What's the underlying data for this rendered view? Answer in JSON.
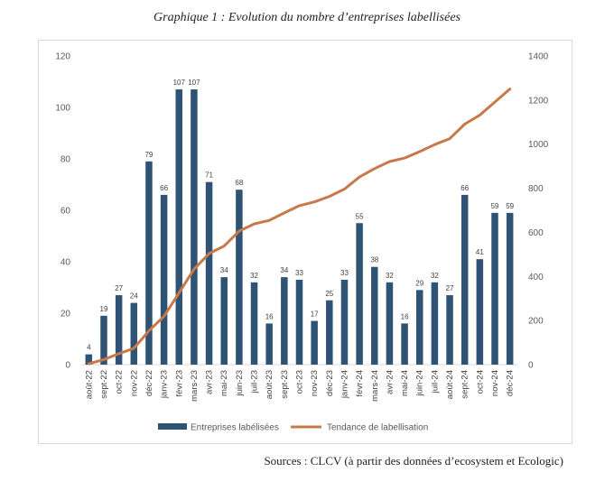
{
  "title": "Graphique 1 : Evolution du nombre d’entreprises labellisées",
  "source": "Sources : CLCV (à partir des données d’ecosystem et Ecologic)",
  "chart_data": {
    "type": "bar",
    "categories": [
      "août-22",
      "sept-22",
      "oct-22",
      "nov-22",
      "déc-22",
      "janv-23",
      "févr-23",
      "mars-23",
      "avr-23",
      "mai-23",
      "juin-23",
      "juil-23",
      "août-23",
      "sept-23",
      "oct-23",
      "nov-23",
      "déc-23",
      "janv-24",
      "févr-24",
      "mars-24",
      "avr-24",
      "mai-24",
      "juin-24",
      "juil-24",
      "août-24",
      "sept-24",
      "oct-24",
      "nov-24",
      "déc-24"
    ],
    "series": [
      {
        "name": "Entreprises labélisées",
        "type": "bar",
        "axis": "left",
        "color": "#2f5374",
        "values": [
          4,
          19,
          27,
          24,
          79,
          66,
          107,
          107,
          71,
          34,
          68,
          32,
          16,
          34,
          33,
          17,
          25,
          33,
          55,
          38,
          32,
          16,
          29,
          32,
          27,
          66,
          41,
          59,
          59
        ]
      },
      {
        "name": "Tendance de labellisation",
        "type": "line",
        "axis": "right",
        "color": "#c7794a",
        "values": [
          4,
          23,
          50,
          74,
          153,
          219,
          326,
          433,
          504,
          538,
          606,
          638,
          654,
          688,
          721,
          738,
          763,
          796,
          851,
          889,
          921,
          937,
          966,
          998,
          1025,
          1091,
          1132,
          1191,
          1250
        ]
      }
    ],
    "y_left": {
      "min": 0,
      "max": 120,
      "ticks": [
        0,
        20,
        40,
        60,
        80,
        100,
        120
      ]
    },
    "y_right": {
      "min": 0,
      "max": 1400,
      "ticks": [
        0,
        200,
        400,
        600,
        800,
        1000,
        1200,
        1400
      ]
    },
    "grid": false,
    "legend_position": "bottom"
  }
}
